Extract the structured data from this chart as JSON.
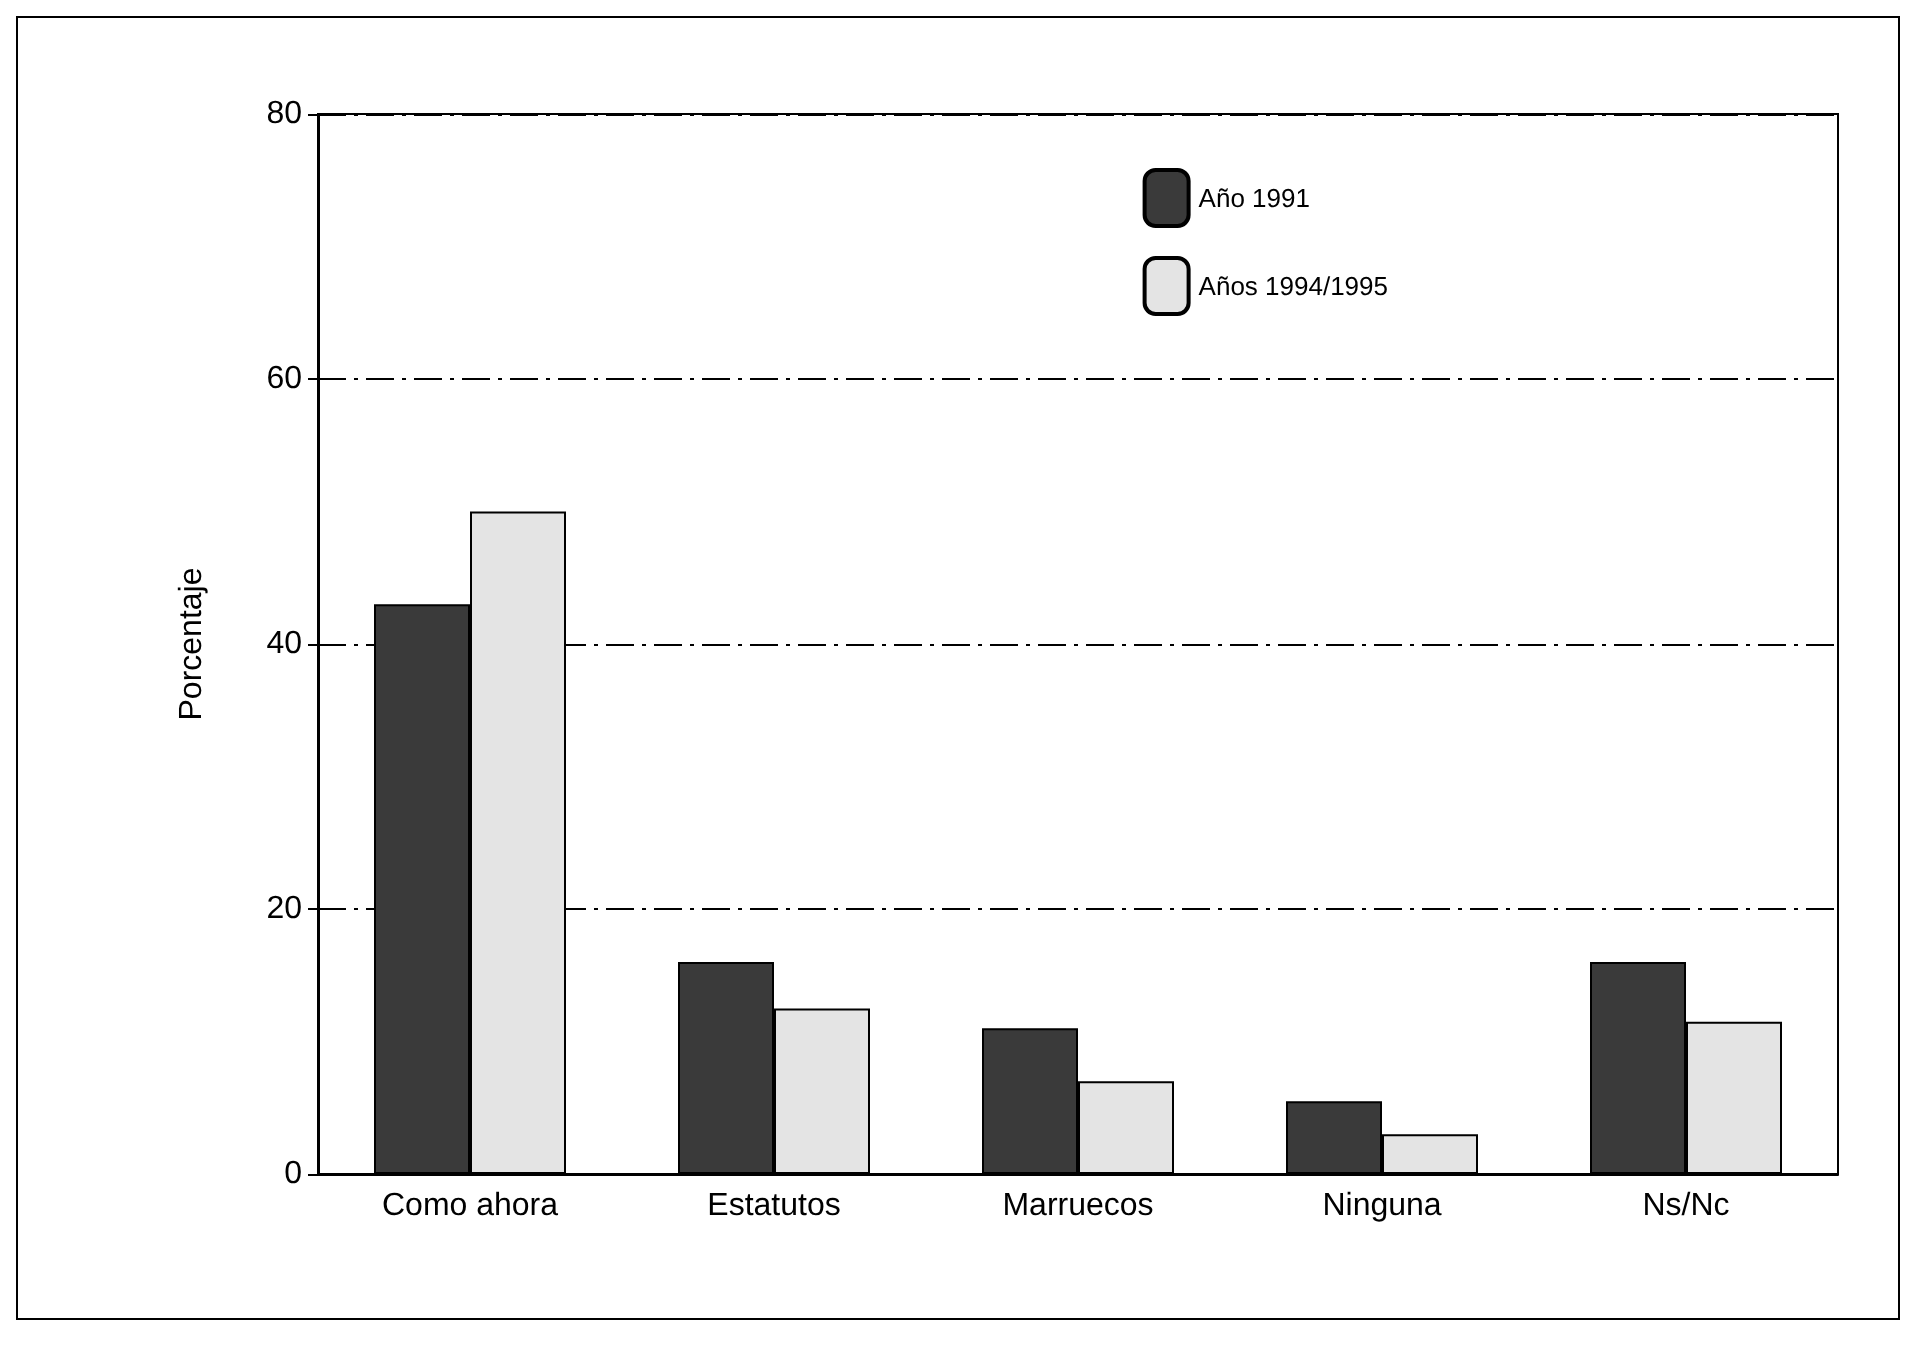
{
  "chart_data": {
    "type": "bar",
    "ylabel": "Porcentaje",
    "categories": [
      "Como ahora",
      "Estatutos",
      "Marruecos",
      "Ninguna",
      "Ns/Nc"
    ],
    "series": [
      {
        "name": "Año 1991",
        "color": "#3a3a3a",
        "values": [
          43,
          16,
          11,
          5.5,
          16
        ]
      },
      {
        "name": "Años 1994/1995",
        "color": "#e4e4e4",
        "values": [
          50,
          12.5,
          7,
          3,
          11.5
        ]
      }
    ],
    "ylim": [
      0,
      80
    ],
    "yticks": [
      0,
      20,
      40,
      60,
      80
    ],
    "grid": "y",
    "legend": "top right"
  }
}
